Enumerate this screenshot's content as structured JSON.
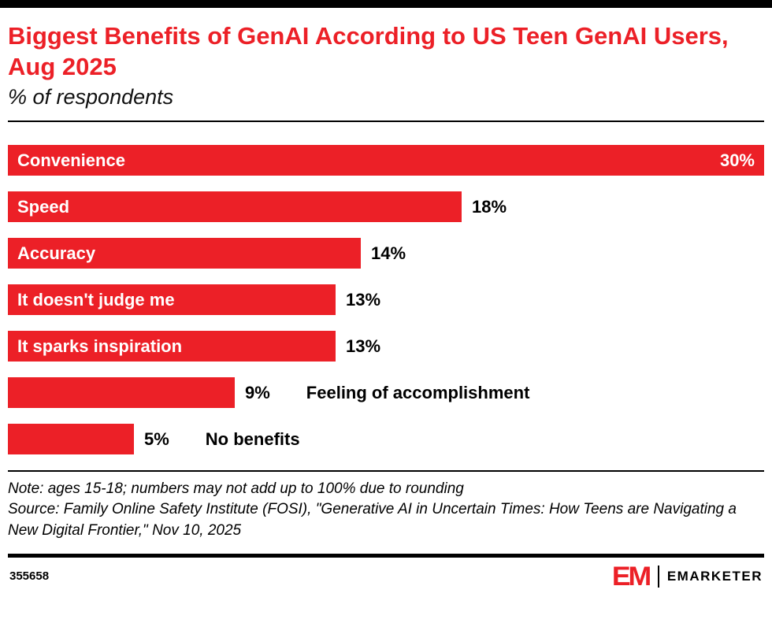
{
  "header": {
    "title": "Biggest Benefits of GenAI According to US Teen GenAI Users, Aug 2025",
    "subtitle": "% of respondents"
  },
  "chart_data": {
    "type": "bar",
    "orientation": "horizontal",
    "title": "Biggest Benefits of GenAI According to US Teen GenAI Users, Aug 2025",
    "subtitle": "% of respondents",
    "categories": [
      "Convenience",
      "Speed",
      "Accuracy",
      "It doesn't judge me",
      "It sparks inspiration",
      "Feeling of accomplishment",
      "No benefits"
    ],
    "values": [
      30,
      18,
      14,
      13,
      13,
      9,
      5
    ],
    "value_suffix": "%",
    "xlabel": "",
    "ylabel": "",
    "xlim": [
      0,
      30
    ],
    "grid": false,
    "legend": false,
    "bar_color": "#EC2027",
    "label_color_inside": "#ffffff",
    "label_color_outside": "#000000"
  },
  "footnotes": {
    "note": "Note: ages 15-18; numbers may not add up to 100% due to rounding",
    "source": "Source: Family Online Safety Institute (FOSI), \"Generative AI in Uncertain Times: How Teens are Navigating a New Digital Frontier,\" Nov 10, 2025"
  },
  "footer": {
    "chart_id": "355658",
    "logo_mark": "EM",
    "brand": "EMARKETER",
    "brand_color": "#EC2027"
  }
}
